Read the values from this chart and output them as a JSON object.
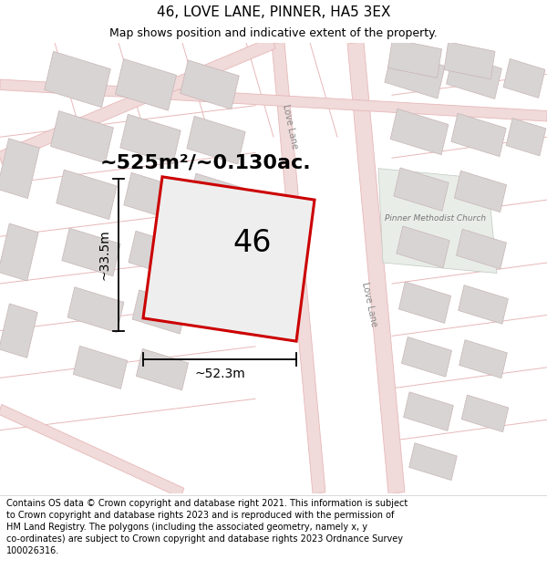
{
  "title": "46, LOVE LANE, PINNER, HA5 3EX",
  "subtitle": "Map shows position and indicative extent of the property.",
  "footer": "Contains OS data © Crown copyright and database right 2021. This information is subject to Crown copyright and database rights 2023 and is reproduced with the permission of HM Land Registry. The polygons (including the associated geometry, namely x, y co-ordinates) are subject to Crown copyright and database rights 2023 Ordnance Survey 100026316.",
  "area_label": "~525m²/~0.130ac.",
  "width_label": "~52.3m",
  "height_label": "~33.5m",
  "number_label": "46",
  "map_bg": "#f7f4f4",
  "road_line_color": "#e8b8b8",
  "road_fill_color": "#f0dada",
  "block_fill": "#d8d4d4",
  "block_edge": "#c8b4b4",
  "plot_edge": "#cc0000",
  "plot_fill": "#eeeeee",
  "church_fill": "#e8ede8",
  "church_edge": "#c0c8c0",
  "title_fontsize": 11,
  "subtitle_fontsize": 9,
  "footer_fontsize": 7,
  "area_fontsize": 16,
  "number_fontsize": 24,
  "dim_fontsize": 10
}
